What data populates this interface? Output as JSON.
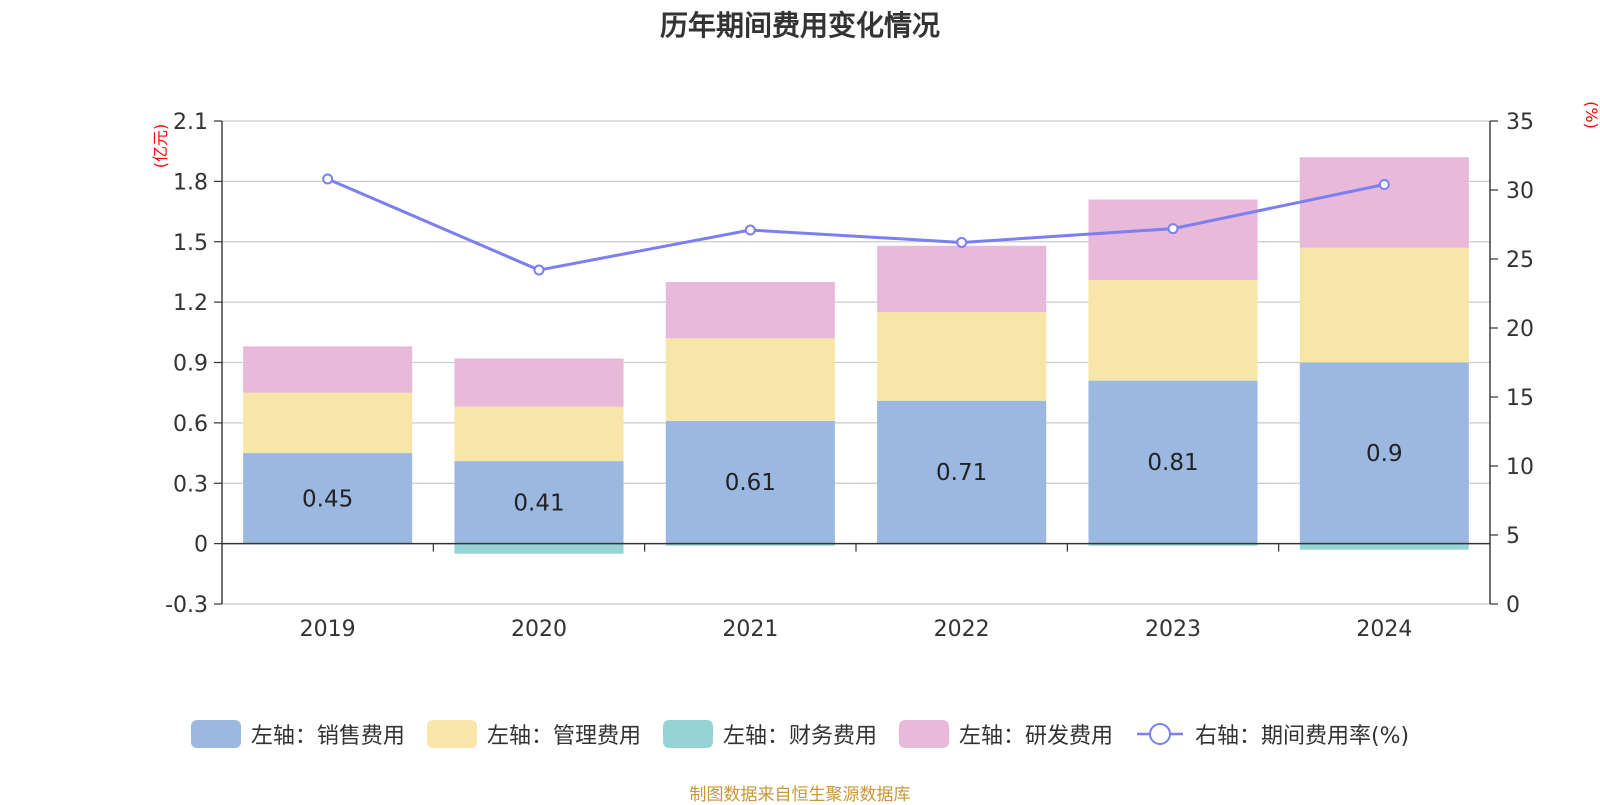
{
  "chart_data": {
    "type": "bar",
    "title": "历年期间费用变化情况",
    "categories": [
      "2019",
      "2020",
      "2021",
      "2022",
      "2023",
      "2024"
    ],
    "stacked": true,
    "left_axis": {
      "unit": "(亿元)",
      "ylim": [
        -0.3,
        2.1
      ],
      "ticks": [
        "2.1",
        "1.8",
        "1.5",
        "1.2",
        "0.9",
        "0.6",
        "0.3",
        "0",
        "-0.3"
      ]
    },
    "right_axis": {
      "unit": "(%)",
      "ylim": [
        0,
        35
      ],
      "ticks": [
        "35",
        "30",
        "25",
        "20",
        "15",
        "10",
        "5",
        "0"
      ]
    },
    "series": [
      {
        "name": "左轴：销售费用",
        "axis": "left",
        "type": "bar",
        "color": "#9bb8e0",
        "values": [
          0.45,
          0.41,
          0.61,
          0.71,
          0.81,
          0.9
        ],
        "labels": [
          "0.45",
          "0.41",
          "0.61",
          "0.71",
          "0.81",
          "0.9"
        ]
      },
      {
        "name": "左轴：管理费用",
        "axis": "left",
        "type": "bar",
        "color": "#f8e6a8",
        "values": [
          0.3,
          0.27,
          0.41,
          0.44,
          0.5,
          0.57
        ]
      },
      {
        "name": "左轴：财务费用",
        "axis": "left",
        "type": "bar",
        "color": "#95d3d4",
        "values": [
          0.0,
          -0.05,
          -0.01,
          0.0,
          -0.01,
          -0.03
        ]
      },
      {
        "name": "左轴：研发费用",
        "axis": "left",
        "type": "bar",
        "color": "#e8b9d9",
        "values": [
          0.23,
          0.24,
          0.28,
          0.33,
          0.4,
          0.45
        ]
      },
      {
        "name": "右轴：期间费用率(%)",
        "axis": "right",
        "type": "line",
        "color": "#7b7ff0",
        "values": [
          30.8,
          24.2,
          27.1,
          26.2,
          27.2,
          30.4
        ]
      }
    ],
    "grid": true,
    "legend_position": "bottom"
  },
  "source_note": "制图数据来自恒生聚源数据库"
}
